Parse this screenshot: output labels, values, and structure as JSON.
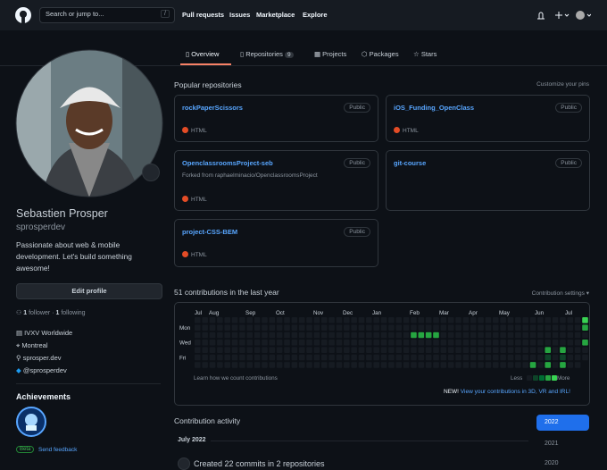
{
  "header": {
    "search_placeholder": "Search or jump to...",
    "search_key": "/",
    "nav": [
      "Pull requests",
      "Issues",
      "Marketplace",
      "Explore"
    ]
  },
  "tabs": [
    {
      "label": "Overview"
    },
    {
      "label": "Repositories",
      "count": 9
    },
    {
      "label": "Projects"
    },
    {
      "label": "Packages"
    },
    {
      "label": "Stars"
    }
  ],
  "profile": {
    "name": "Sebastien Prosper",
    "username": "sprosperdev",
    "bio": "Passionate about web & mobile development. Let's build something awesome!",
    "edit_button": "Edit profile",
    "followers_count": 1,
    "followers_label": "follower",
    "separator": "·",
    "following_count": 1,
    "following_label": "following",
    "details": [
      "IVXV Worldwide",
      "Montreal",
      "sprosper.dev",
      "@sprosperdev"
    ],
    "achievements_title": "Achievements",
    "beta": "Beta",
    "feedback": "Send feedback"
  },
  "popular": {
    "title": "Popular repositories",
    "customize": "Customize your pins",
    "repos": [
      {
        "name": "rockPaperScissors",
        "visibility": "Public",
        "language": "HTML"
      },
      {
        "name": "iOS_Funding_OpenClass",
        "visibility": "Public",
        "language": "HTML"
      },
      {
        "name": "OpenclassroomsProject-seb",
        "visibility": "Public",
        "forked": "Forked from raphaelminacio/OpenclassroomsProject",
        "language": "HTML"
      },
      {
        "name": "git-course",
        "visibility": "Public"
      },
      {
        "name": "project-CSS-BEM",
        "visibility": "Public",
        "language": "HTML"
      }
    ]
  },
  "contributions": {
    "title": "51 contributions in the last year",
    "settings": "Contribution settings",
    "months": [
      "Jul",
      "Aug",
      "Sep",
      "Oct",
      "Nov",
      "Dec",
      "Jan",
      "Feb",
      "Mar",
      "Apr",
      "May",
      "Jun",
      "Jul"
    ],
    "days": [
      "Mon",
      "Wed",
      "Fri"
    ],
    "learn": "Learn how we count contributions",
    "less": "Less",
    "more": "More",
    "new": "NEW!",
    "new_link": "View your contributions in 3D, VR and IRL!"
  },
  "activity": {
    "title": "Contribution activity",
    "month": "July 2022",
    "item": "Created 22 commits in 2 repositories",
    "years": [
      "2022",
      "2021",
      "2020"
    ]
  }
}
